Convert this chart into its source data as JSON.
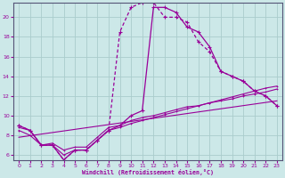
{
  "xlabel": "Windchill (Refroidissement éolien,°C)",
  "bg_color": "#cce8e8",
  "grid_color": "#aacccc",
  "line_color": "#990099",
  "xlim": [
    -0.5,
    23.5
  ],
  "ylim": [
    5.5,
    21.5
  ],
  "yticks": [
    6,
    8,
    10,
    12,
    14,
    16,
    18,
    20
  ],
  "xticks": [
    0,
    1,
    2,
    3,
    4,
    5,
    6,
    7,
    8,
    9,
    10,
    11,
    12,
    13,
    14,
    15,
    16,
    17,
    18,
    19,
    20,
    21,
    22,
    23
  ],
  "curve_solid_x": [
    0,
    1,
    2,
    3,
    4,
    5,
    6,
    7,
    8,
    9,
    10,
    11,
    12,
    13,
    14,
    15,
    16,
    17,
    18,
    19,
    20,
    21,
    22,
    23
  ],
  "curve_solid_y": [
    9.0,
    8.5,
    7.0,
    7.0,
    5.5,
    6.5,
    6.5,
    7.5,
    8.5,
    9.0,
    10.0,
    10.5,
    21.0,
    21.0,
    20.5,
    19.0,
    18.5,
    17.0,
    14.5,
    14.0,
    13.5,
    12.5,
    12.0,
    11.0
  ],
  "curve_dashed_x": [
    0,
    1,
    2,
    3,
    4,
    5,
    6,
    7,
    8,
    9,
    10,
    11,
    12,
    13,
    14,
    15,
    16,
    17,
    18,
    19,
    20,
    21,
    22,
    23
  ],
  "curve_dashed_y": [
    9.0,
    8.5,
    7.0,
    7.0,
    5.5,
    6.5,
    6.5,
    7.5,
    8.5,
    18.5,
    21.0,
    21.5,
    21.5,
    20.0,
    20.0,
    19.5,
    17.5,
    16.5,
    14.5,
    14.0,
    13.5,
    12.5,
    12.0,
    11.0
  ],
  "line1_x": [
    0,
    1,
    2,
    3,
    4,
    5,
    6,
    7,
    8,
    9,
    10,
    11,
    12,
    13,
    14,
    15,
    16,
    17,
    18,
    19,
    20,
    21,
    22,
    23
  ],
  "line1_y": [
    8.8,
    8.5,
    7.0,
    7.2,
    6.5,
    6.8,
    6.8,
    7.8,
    8.8,
    9.0,
    9.5,
    9.8,
    10.0,
    10.3,
    10.6,
    10.9,
    11.0,
    11.3,
    11.5,
    11.7,
    12.0,
    12.2,
    12.4,
    12.7
  ],
  "line2_x": [
    0,
    1,
    2,
    3,
    4,
    5,
    6,
    7,
    8,
    9,
    10,
    11,
    12,
    13,
    14,
    15,
    16,
    17,
    18,
    19,
    20,
    21,
    22,
    23
  ],
  "line2_y": [
    8.5,
    8.0,
    7.0,
    7.0,
    6.0,
    6.5,
    6.5,
    7.5,
    8.5,
    8.8,
    9.2,
    9.5,
    9.8,
    10.1,
    10.4,
    10.7,
    11.0,
    11.3,
    11.6,
    11.9,
    12.2,
    12.5,
    12.8,
    13.0
  ],
  "line3_x": [
    0,
    23
  ],
  "line3_y": [
    7.8,
    11.5
  ]
}
